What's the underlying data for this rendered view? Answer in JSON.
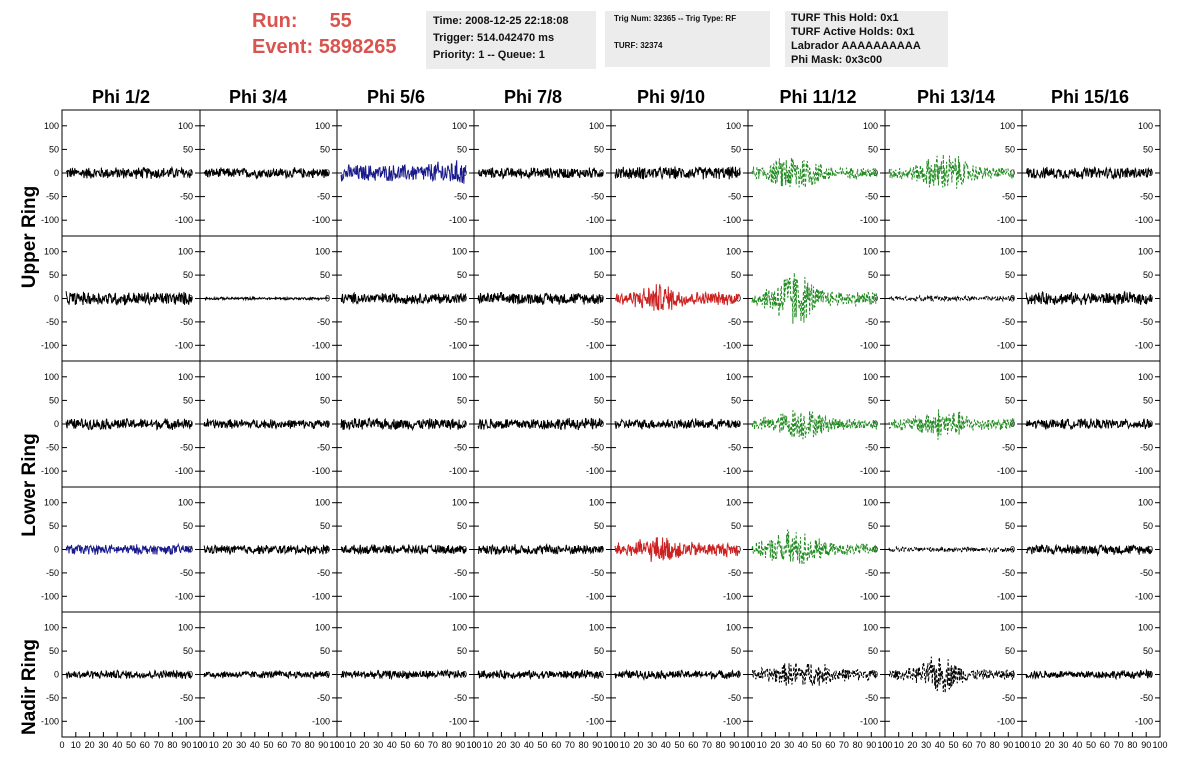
{
  "header": {
    "run_label": "Run:",
    "run_value": "55",
    "event_label": "Event:",
    "event_value": "5898265",
    "box1": [
      "Time: 2008-12-25 22:18:08",
      "Trigger: 514.042470 ms",
      "Priority: 1 -- Queue: 1"
    ],
    "box2": [
      "Trig Num: 32365 -- Trig Type: RF",
      "TURF: 32374"
    ],
    "box3": [
      "TURF This Hold: 0x1",
      "TURF Active Holds: 0x1",
      "Labrador AAAAAAAAAA",
      "Phi Mask: 0x3c00"
    ]
  },
  "columns": [
    "Phi 1/2",
    "Phi 3/4",
    "Phi 5/6",
    "Phi 7/8",
    "Phi 9/10",
    "Phi 11/12",
    "Phi 13/14",
    "Phi 15/16"
  ],
  "ring_labels": [
    "Upper Ring",
    "Lower Ring",
    "Nadir Ring"
  ],
  "colors": {
    "blue": "#1a1a8c",
    "red": "#cc2222",
    "green": "#228b22",
    "black": "#000000",
    "ring_label": "#d9534f"
  },
  "chart_data": {
    "type": "line",
    "title": "",
    "xlabel": "",
    "ylabel": "",
    "xlim": [
      0,
      100
    ],
    "ylim": [
      -125,
      125
    ],
    "x_ticks": [
      0,
      10,
      20,
      30,
      40,
      50,
      60,
      70,
      80,
      90,
      100
    ],
    "y_ticks": [
      -100,
      -50,
      0,
      50,
      100
    ],
    "grid": false,
    "panels": [
      [
        {
          "color": "black",
          "style": "solid",
          "amp": 14,
          "burst": null
        },
        {
          "color": "black",
          "style": "solid",
          "amp": 12,
          "burst": null
        },
        {
          "color": "blue",
          "style": "solid",
          "amp": 20,
          "burst": [
            85,
            12,
            10
          ]
        },
        {
          "color": "black",
          "style": "solid",
          "amp": 13,
          "burst": null
        },
        {
          "color": "black",
          "style": "solid",
          "amp": 15,
          "burst": null
        },
        {
          "color": "green",
          "style": "dashed",
          "amp": 14,
          "burst": [
            35,
            12,
            35
          ]
        },
        {
          "color": "green",
          "style": "dashed",
          "amp": 14,
          "burst": [
            44,
            12,
            35
          ]
        },
        {
          "color": "black",
          "style": "solid",
          "amp": 14,
          "burst": null
        }
      ],
      [
        {
          "color": "black",
          "style": "solid",
          "amp": 16,
          "burst": null
        },
        {
          "color": "black",
          "style": "solid",
          "amp": 3,
          "burst": null
        },
        {
          "color": "black",
          "style": "solid",
          "amp": 13,
          "burst": null
        },
        {
          "color": "black",
          "style": "solid",
          "amp": 14,
          "burst": null
        },
        {
          "color": "red",
          "style": "solid",
          "amp": 16,
          "burst": [
            35,
            10,
            20
          ]
        },
        {
          "color": "green",
          "style": "dashed",
          "amp": 18,
          "burst": [
            33,
            10,
            55
          ]
        },
        {
          "color": "black",
          "style": "dashed",
          "amp": 6,
          "burst": null
        },
        {
          "color": "black",
          "style": "solid",
          "amp": 15,
          "burst": null
        }
      ],
      [
        {
          "color": "black",
          "style": "solid",
          "amp": 13,
          "burst": null
        },
        {
          "color": "black",
          "style": "solid",
          "amp": 11,
          "burst": null
        },
        {
          "color": "black",
          "style": "solid",
          "amp": 13,
          "burst": null
        },
        {
          "color": "black",
          "style": "solid",
          "amp": 14,
          "burst": null
        },
        {
          "color": "black",
          "style": "solid",
          "amp": 12,
          "burst": null
        },
        {
          "color": "green",
          "style": "dashed",
          "amp": 14,
          "burst": [
            38,
            12,
            25
          ]
        },
        {
          "color": "green",
          "style": "dashed",
          "amp": 14,
          "burst": [
            42,
            12,
            25
          ]
        },
        {
          "color": "black",
          "style": "solid",
          "amp": 12,
          "burst": null
        }
      ],
      [
        {
          "color": "blue",
          "style": "solid",
          "amp": 12,
          "burst": null
        },
        {
          "color": "black",
          "style": "solid",
          "amp": 11,
          "burst": null
        },
        {
          "color": "black",
          "style": "solid",
          "amp": 11,
          "burst": null
        },
        {
          "color": "black",
          "style": "solid",
          "amp": 12,
          "burst": null
        },
        {
          "color": "red",
          "style": "solid",
          "amp": 17,
          "burst": [
            35,
            10,
            15
          ]
        },
        {
          "color": "green",
          "style": "dashed",
          "amp": 14,
          "burst": [
            33,
            12,
            35
          ]
        },
        {
          "color": "black",
          "style": "dashed",
          "amp": 6,
          "burst": null
        },
        {
          "color": "black",
          "style": "solid",
          "amp": 12,
          "burst": null
        }
      ],
      [
        {
          "color": "black",
          "style": "solid",
          "amp": 10,
          "burst": null
        },
        {
          "color": "black",
          "style": "solid",
          "amp": 9,
          "burst": null
        },
        {
          "color": "black",
          "style": "solid",
          "amp": 10,
          "burst": null
        },
        {
          "color": "black",
          "style": "solid",
          "amp": 10,
          "burst": null
        },
        {
          "color": "black",
          "style": "solid",
          "amp": 10,
          "burst": null
        },
        {
          "color": "black",
          "style": "dashed",
          "amp": 14,
          "burst": [
            40,
            14,
            20
          ]
        },
        {
          "color": "black",
          "style": "dashed",
          "amp": 12,
          "burst": [
            40,
            10,
            35
          ]
        },
        {
          "color": "black",
          "style": "solid",
          "amp": 10,
          "burst": null
        }
      ]
    ]
  }
}
